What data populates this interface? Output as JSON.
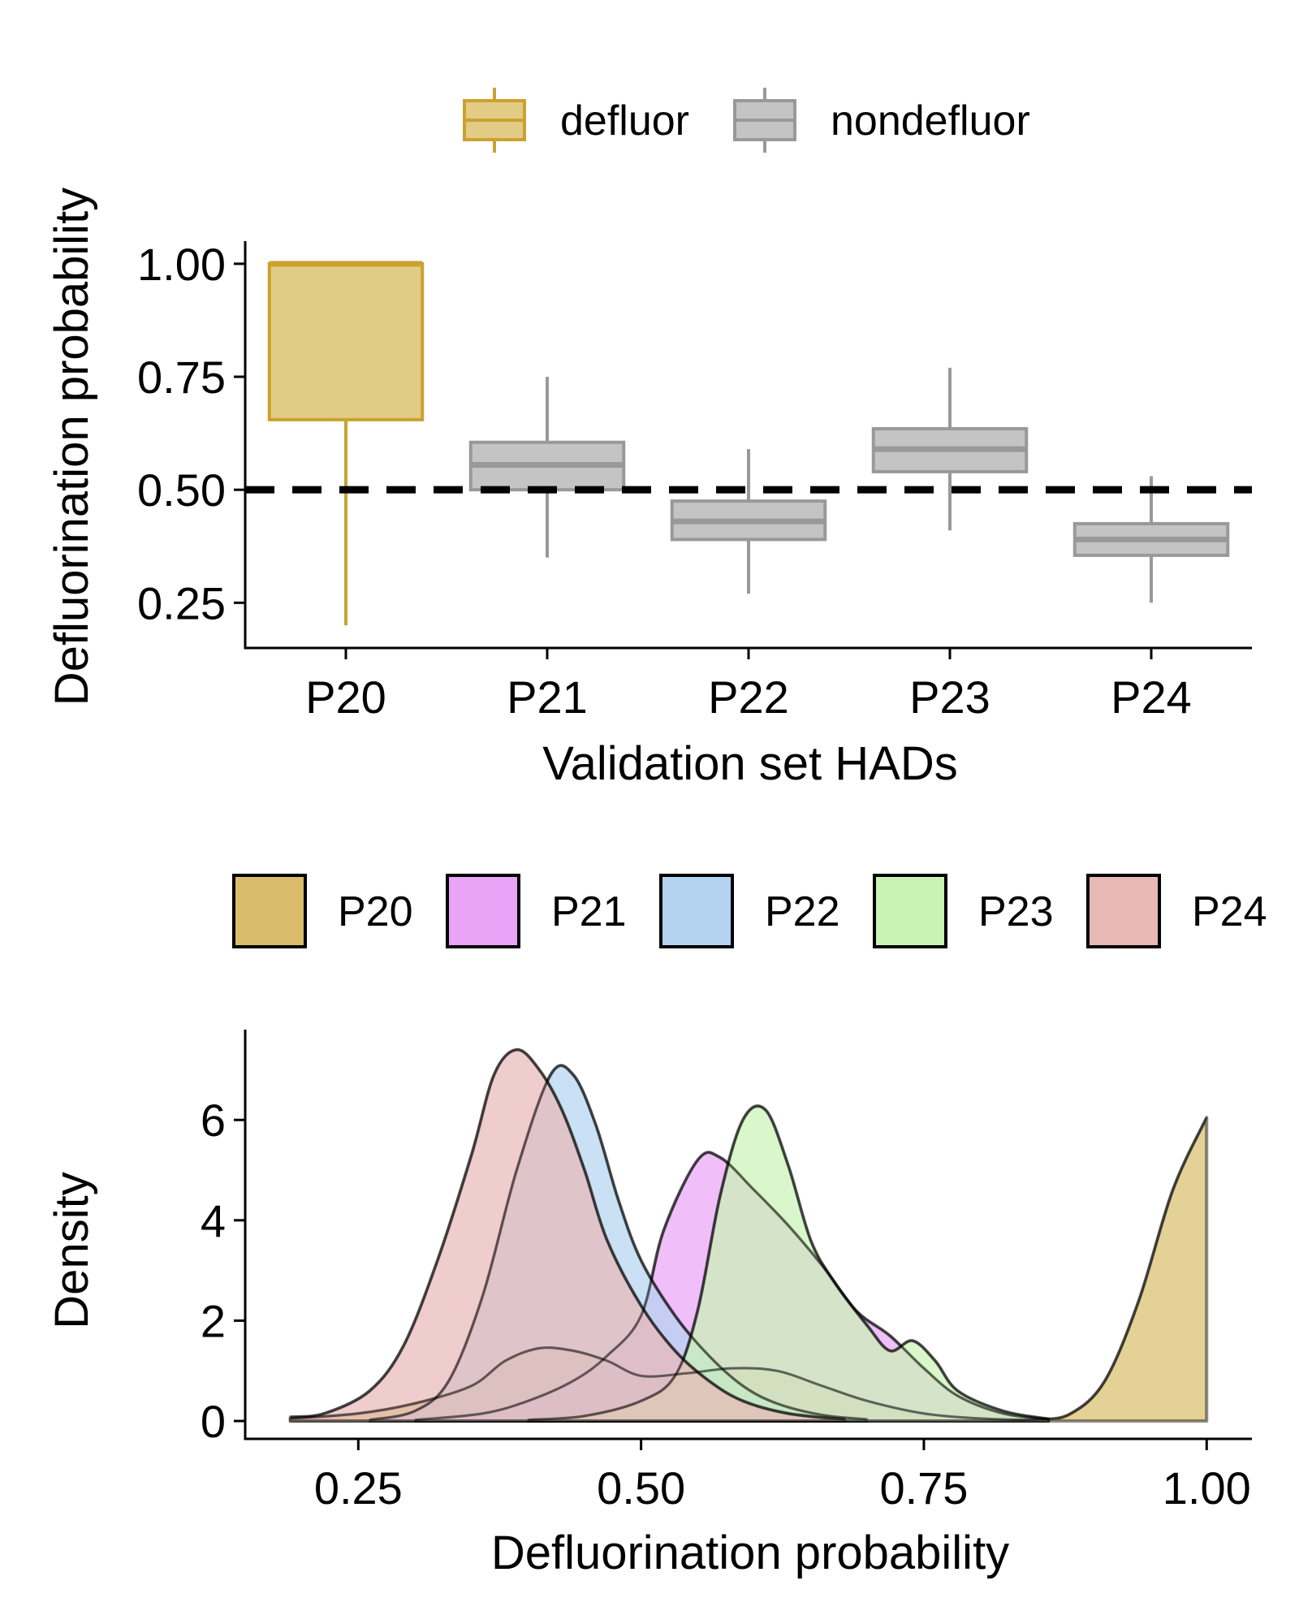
{
  "chart_data": [
    {
      "type": "box",
      "xlabel": "Validation set HADs",
      "ylabel": "Defluorination probability",
      "ylim": [
        0.15,
        1.05
      ],
      "yticks": [
        "0.25",
        "0.50",
        "0.75",
        "1.00"
      ],
      "reference_line": {
        "y": 0.5,
        "style": "dashed",
        "color": "#000000"
      },
      "legend": {
        "placement": "top",
        "entries": [
          {
            "label": "defluor",
            "fill": "#e2cb84",
            "stroke": "#c9a230"
          },
          {
            "label": "nondefluor",
            "fill": "#c4c4c4",
            "stroke": "#999999"
          }
        ]
      },
      "categories": [
        "P20",
        "P21",
        "P22",
        "P23",
        "P24"
      ],
      "boxes": [
        {
          "category": "P20",
          "group": "defluor",
          "whisker_low": 0.2,
          "q1": 0.655,
          "median": 1.0,
          "q3": 1.0,
          "whisker_high": 1.0
        },
        {
          "category": "P21",
          "group": "nondefluor",
          "whisker_low": 0.35,
          "q1": 0.5,
          "median": 0.555,
          "q3": 0.605,
          "whisker_high": 0.75
        },
        {
          "category": "P22",
          "group": "nondefluor",
          "whisker_low": 0.27,
          "q1": 0.39,
          "median": 0.43,
          "q3": 0.475,
          "whisker_high": 0.59
        },
        {
          "category": "P23",
          "group": "nondefluor",
          "whisker_low": 0.41,
          "q1": 0.54,
          "median": 0.59,
          "q3": 0.635,
          "whisker_high": 0.77
        },
        {
          "category": "P24",
          "group": "nondefluor",
          "whisker_low": 0.25,
          "q1": 0.355,
          "median": 0.39,
          "q3": 0.425,
          "whisker_high": 0.53
        }
      ]
    },
    {
      "type": "area",
      "xlabel": "Defluorination probability",
      "ylabel": "Density",
      "xlim": [
        0.15,
        1.04
      ],
      "ylim": [
        0,
        7.8
      ],
      "xticks": [
        "0.25",
        "0.50",
        "0.75",
        "1.00"
      ],
      "yticks": [
        "0",
        "2",
        "4",
        "6"
      ],
      "legend": {
        "placement": "top",
        "entries": [
          {
            "label": "P20",
            "fill": "#d9bd6a"
          },
          {
            "label": "P21",
            "fill": "#eaa4f7"
          },
          {
            "label": "P22",
            "fill": "#b4d3f1"
          },
          {
            "label": "P23",
            "fill": "#c9f3b5"
          },
          {
            "label": "P24",
            "fill": "#e8b8b6"
          }
        ]
      },
      "series": [
        {
          "name": "P20",
          "fill": "#d9bd6a",
          "points": [
            [
              0.19,
              0.05
            ],
            [
              0.25,
              0.15
            ],
            [
              0.3,
              0.35
            ],
            [
              0.35,
              0.7
            ],
            [
              0.38,
              1.2
            ],
            [
              0.41,
              1.45
            ],
            [
              0.44,
              1.4
            ],
            [
              0.47,
              1.2
            ],
            [
              0.5,
              0.9
            ],
            [
              0.54,
              0.95
            ],
            [
              0.58,
              1.05
            ],
            [
              0.62,
              1.0
            ],
            [
              0.66,
              0.7
            ],
            [
              0.7,
              0.4
            ],
            [
              0.75,
              0.15
            ],
            [
              0.8,
              0.05
            ],
            [
              0.85,
              0.03
            ],
            [
              0.88,
              0.15
            ],
            [
              0.91,
              0.8
            ],
            [
              0.94,
              2.4
            ],
            [
              0.97,
              4.6
            ],
            [
              1.0,
              6.05
            ]
          ]
        },
        {
          "name": "P21",
          "fill": "#eaa4f7",
          "points": [
            [
              0.3,
              0.02
            ],
            [
              0.36,
              0.15
            ],
            [
              0.4,
              0.4
            ],
            [
              0.44,
              0.8
            ],
            [
              0.47,
              1.3
            ],
            [
              0.5,
              2.1
            ],
            [
              0.52,
              3.8
            ],
            [
              0.55,
              5.2
            ],
            [
              0.57,
              5.25
            ],
            [
              0.6,
              4.6
            ],
            [
              0.63,
              3.9
            ],
            [
              0.66,
              3.1
            ],
            [
              0.69,
              2.2
            ],
            [
              0.72,
              1.7
            ],
            [
              0.75,
              1.05
            ],
            [
              0.78,
              0.5
            ],
            [
              0.82,
              0.15
            ],
            [
              0.86,
              0.03
            ]
          ]
        },
        {
          "name": "P22",
          "fill": "#b4d3f1",
          "points": [
            [
              0.26,
              0.02
            ],
            [
              0.3,
              0.2
            ],
            [
              0.33,
              0.8
            ],
            [
              0.36,
              2.5
            ],
            [
              0.39,
              5.0
            ],
            [
              0.42,
              6.9
            ],
            [
              0.44,
              6.9
            ],
            [
              0.46,
              5.9
            ],
            [
              0.48,
              4.4
            ],
            [
              0.5,
              3.2
            ],
            [
              0.53,
              2.1
            ],
            [
              0.56,
              1.3
            ],
            [
              0.59,
              0.7
            ],
            [
              0.62,
              0.35
            ],
            [
              0.66,
              0.12
            ],
            [
              0.7,
              0.03
            ]
          ]
        },
        {
          "name": "P23",
          "fill": "#c9f3b5",
          "points": [
            [
              0.4,
              0.02
            ],
            [
              0.45,
              0.1
            ],
            [
              0.5,
              0.4
            ],
            [
              0.53,
              0.9
            ],
            [
              0.55,
              2.2
            ],
            [
              0.57,
              4.5
            ],
            [
              0.59,
              6.0
            ],
            [
              0.61,
              6.2
            ],
            [
              0.63,
              5.1
            ],
            [
              0.65,
              3.6
            ],
            [
              0.67,
              2.8
            ],
            [
              0.7,
              1.9
            ],
            [
              0.72,
              1.4
            ],
            [
              0.74,
              1.6
            ],
            [
              0.76,
              1.2
            ],
            [
              0.78,
              0.6
            ],
            [
              0.82,
              0.2
            ],
            [
              0.86,
              0.04
            ]
          ]
        },
        {
          "name": "P24",
          "fill": "#e8b8b6",
          "points": [
            [
              0.19,
              0.08
            ],
            [
              0.22,
              0.15
            ],
            [
              0.26,
              0.6
            ],
            [
              0.29,
              1.5
            ],
            [
              0.32,
              3.2
            ],
            [
              0.35,
              5.3
            ],
            [
              0.37,
              6.9
            ],
            [
              0.39,
              7.4
            ],
            [
              0.41,
              7.0
            ],
            [
              0.43,
              6.2
            ],
            [
              0.45,
              5.0
            ],
            [
              0.47,
              3.6
            ],
            [
              0.5,
              2.3
            ],
            [
              0.53,
              1.4
            ],
            [
              0.56,
              0.8
            ],
            [
              0.59,
              0.4
            ],
            [
              0.63,
              0.15
            ],
            [
              0.68,
              0.03
            ]
          ]
        }
      ]
    }
  ]
}
